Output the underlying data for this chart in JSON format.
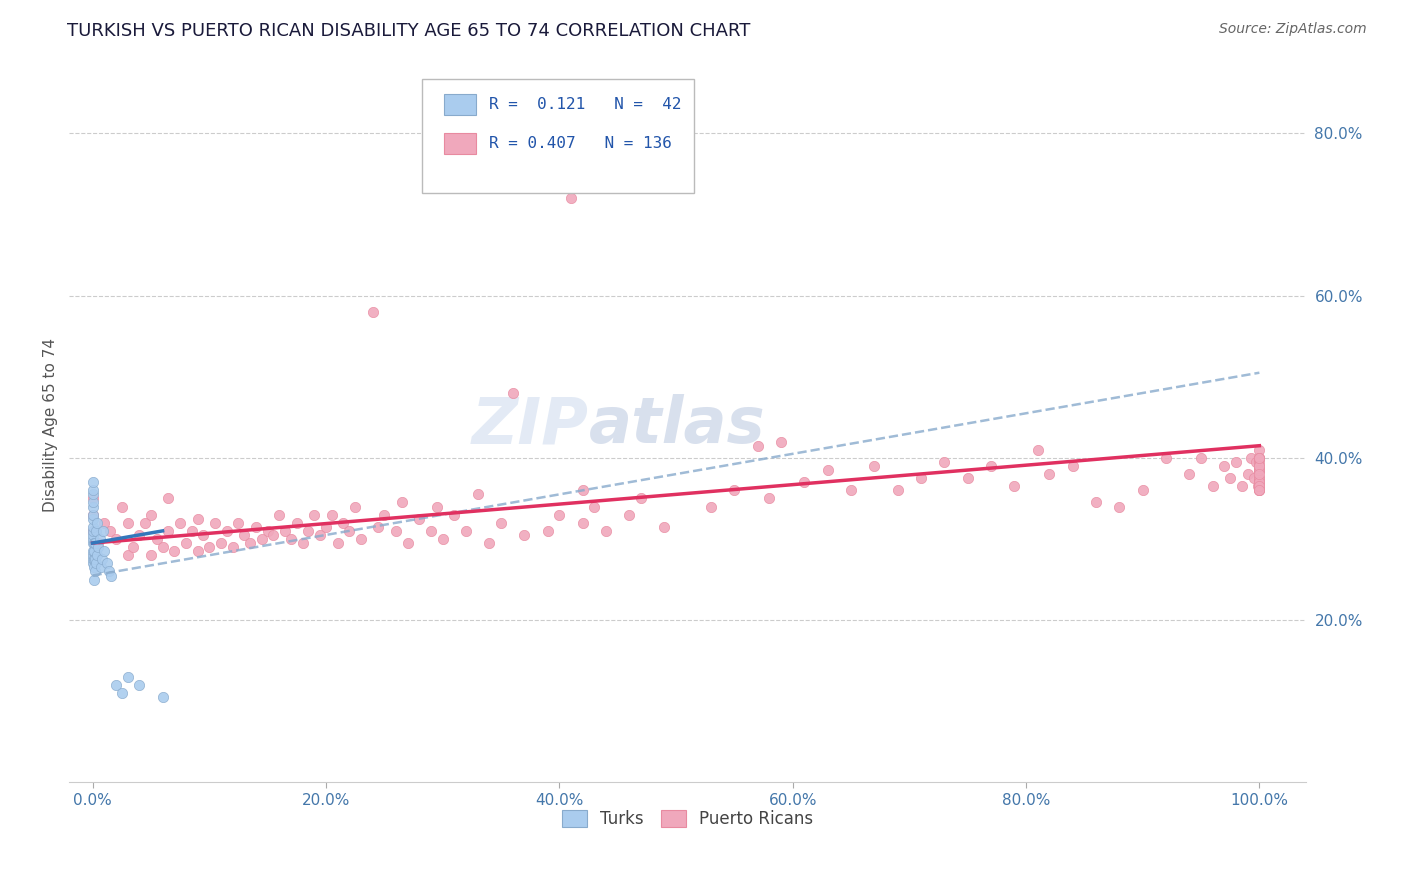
{
  "title": "TURKISH VS PUERTO RICAN DISABILITY AGE 65 TO 74 CORRELATION CHART",
  "source": "Source: ZipAtlas.com",
  "ylabel": "Disability Age 65 to 74",
  "turks_R": 0.121,
  "turks_N": 42,
  "pr_R": 0.407,
  "pr_N": 136,
  "xlim": [
    -0.02,
    1.04
  ],
  "ylim": [
    0.0,
    0.88
  ],
  "xticks": [
    0.0,
    0.2,
    0.4,
    0.6,
    0.8,
    1.0
  ],
  "yticks": [
    0.2,
    0.4,
    0.6,
    0.8
  ],
  "ytick_labels": [
    "20.0%",
    "40.0%",
    "60.0%",
    "80.0%"
  ],
  "xtick_labels": [
    "0.0%",
    "20.0%",
    "40.0%",
    "60.0%",
    "80.0%",
    "100.0%"
  ],
  "watermark_zip": "ZIP",
  "watermark_atlas": "atlas",
  "background_color": "#ffffff",
  "grid_color": "#cccccc",
  "turks_color": "#aaccee",
  "turks_line_color": "#3377bb",
  "pr_color": "#f0a8bc",
  "pr_line_color": "#e03060",
  "dash_line_color": "#88aacc",
  "turks_x": [
    0.0,
    0.0,
    0.0,
    0.0,
    0.0,
    0.0,
    0.0,
    0.0,
    0.0,
    0.0,
    0.0,
    0.0,
    0.0,
    0.0,
    0.0,
    0.0,
    0.001,
    0.001,
    0.001,
    0.001,
    0.001,
    0.002,
    0.002,
    0.002,
    0.003,
    0.003,
    0.004,
    0.004,
    0.005,
    0.006,
    0.007,
    0.008,
    0.009,
    0.01,
    0.012,
    0.014,
    0.016,
    0.02,
    0.025,
    0.03,
    0.04,
    0.06
  ],
  "turks_y": [
    0.27,
    0.275,
    0.28,
    0.285,
    0.295,
    0.3,
    0.305,
    0.31,
    0.315,
    0.325,
    0.33,
    0.34,
    0.345,
    0.355,
    0.36,
    0.37,
    0.25,
    0.265,
    0.275,
    0.285,
    0.295,
    0.26,
    0.275,
    0.295,
    0.27,
    0.31,
    0.28,
    0.32,
    0.29,
    0.3,
    0.265,
    0.275,
    0.31,
    0.285,
    0.27,
    0.26,
    0.255,
    0.12,
    0.11,
    0.13,
    0.12,
    0.105
  ],
  "pr_x": [
    0.0,
    0.0,
    0.0,
    0.005,
    0.01,
    0.015,
    0.02,
    0.025,
    0.03,
    0.03,
    0.035,
    0.04,
    0.045,
    0.05,
    0.05,
    0.055,
    0.06,
    0.065,
    0.065,
    0.07,
    0.075,
    0.08,
    0.085,
    0.09,
    0.09,
    0.095,
    0.1,
    0.105,
    0.11,
    0.115,
    0.12,
    0.125,
    0.13,
    0.135,
    0.14,
    0.145,
    0.15,
    0.155,
    0.16,
    0.165,
    0.17,
    0.175,
    0.18,
    0.185,
    0.19,
    0.195,
    0.2,
    0.205,
    0.21,
    0.215,
    0.22,
    0.225,
    0.23,
    0.24,
    0.245,
    0.25,
    0.26,
    0.265,
    0.27,
    0.28,
    0.29,
    0.295,
    0.3,
    0.31,
    0.32,
    0.33,
    0.34,
    0.35,
    0.36,
    0.37,
    0.39,
    0.4,
    0.41,
    0.42,
    0.43,
    0.44,
    0.46,
    0.47,
    0.49,
    0.42,
    0.53,
    0.55,
    0.57,
    0.58,
    0.59,
    0.61,
    0.63,
    0.65,
    0.67,
    0.69,
    0.71,
    0.73,
    0.75,
    0.77,
    0.79,
    0.81,
    0.82,
    0.84,
    0.86,
    0.88,
    0.9,
    0.92,
    0.94,
    0.95,
    0.96,
    0.97,
    0.975,
    0.98,
    0.985,
    0.99,
    0.993,
    0.995,
    0.997,
    0.999,
    1.0,
    1.0,
    1.0,
    1.0,
    1.0,
    1.0,
    1.0,
    1.0,
    1.0,
    1.0,
    1.0,
    1.0,
    1.0,
    1.0,
    1.0,
    1.0,
    1.0,
    1.0,
    1.0,
    1.0,
    1.0,
    1.0
  ],
  "pr_y": [
    0.31,
    0.33,
    0.35,
    0.295,
    0.32,
    0.31,
    0.3,
    0.34,
    0.28,
    0.32,
    0.29,
    0.305,
    0.32,
    0.28,
    0.33,
    0.3,
    0.29,
    0.31,
    0.35,
    0.285,
    0.32,
    0.295,
    0.31,
    0.285,
    0.325,
    0.305,
    0.29,
    0.32,
    0.295,
    0.31,
    0.29,
    0.32,
    0.305,
    0.295,
    0.315,
    0.3,
    0.31,
    0.305,
    0.33,
    0.31,
    0.3,
    0.32,
    0.295,
    0.31,
    0.33,
    0.305,
    0.315,
    0.33,
    0.295,
    0.32,
    0.31,
    0.34,
    0.3,
    0.58,
    0.315,
    0.33,
    0.31,
    0.345,
    0.295,
    0.325,
    0.31,
    0.34,
    0.3,
    0.33,
    0.31,
    0.355,
    0.295,
    0.32,
    0.48,
    0.305,
    0.31,
    0.33,
    0.72,
    0.32,
    0.34,
    0.31,
    0.33,
    0.35,
    0.315,
    0.36,
    0.34,
    0.36,
    0.415,
    0.35,
    0.42,
    0.37,
    0.385,
    0.36,
    0.39,
    0.36,
    0.375,
    0.395,
    0.375,
    0.39,
    0.365,
    0.41,
    0.38,
    0.39,
    0.345,
    0.34,
    0.36,
    0.4,
    0.38,
    0.4,
    0.365,
    0.39,
    0.375,
    0.395,
    0.365,
    0.38,
    0.4,
    0.375,
    0.395,
    0.365,
    0.385,
    0.4,
    0.36,
    0.385,
    0.375,
    0.395,
    0.37,
    0.385,
    0.4,
    0.36,
    0.39,
    0.375,
    0.41,
    0.365,
    0.385,
    0.4,
    0.37,
    0.39,
    0.365,
    0.38,
    0.4,
    0.36
  ],
  "pr_line_x0": 0.0,
  "pr_line_y0": 0.295,
  "pr_line_x1": 1.0,
  "pr_line_y1": 0.415,
  "dash_line_x0": 0.0,
  "dash_line_y0": 0.255,
  "dash_line_x1": 1.0,
  "dash_line_y1": 0.505,
  "turks_line_x0": 0.0,
  "turks_line_y0": 0.295,
  "turks_line_x1": 0.06,
  "turks_line_y1": 0.31,
  "title_fontsize": 13,
  "axis_tick_fontsize": 11,
  "ylabel_fontsize": 11
}
